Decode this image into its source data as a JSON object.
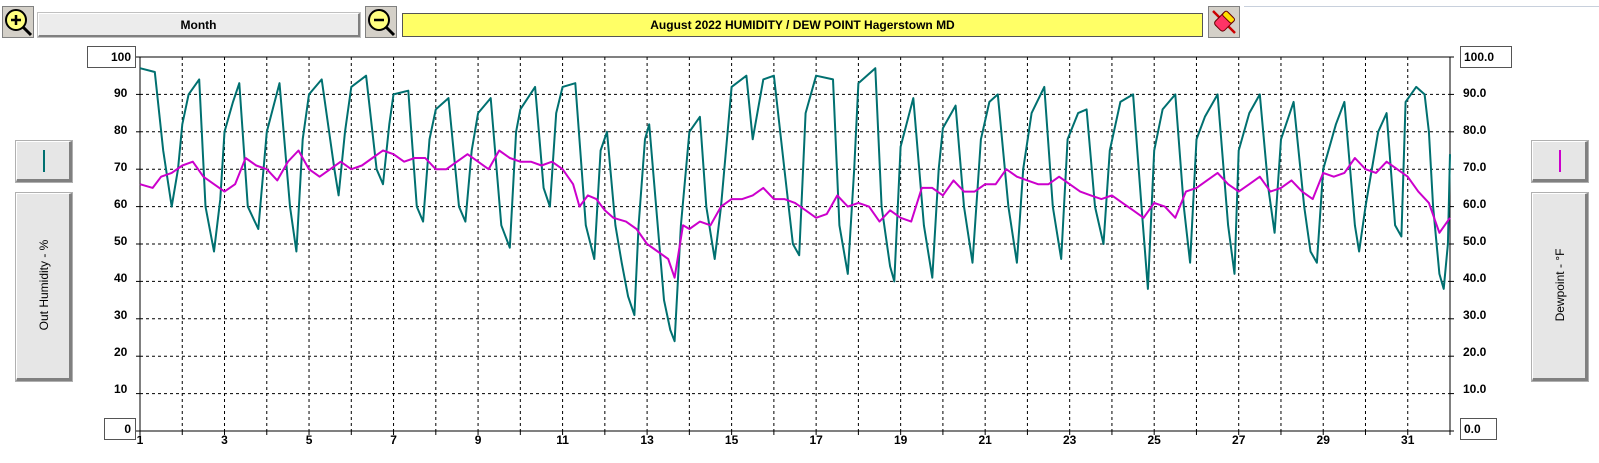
{
  "toolbar": {
    "zoom_in_icon": "magnifier-plus-icon",
    "zoom_out_icon": "magnifier-minus-icon",
    "clear_icon": "eraser-icon",
    "period_label": "Month",
    "title": "August 2022   HUMIDITY / DEW POINT  Hagerstown MD"
  },
  "left_axis": {
    "label": "Out Humidity - %",
    "max_box": "100",
    "min_box": "0",
    "ticks": [
      "90",
      "80",
      "70",
      "60",
      "50",
      "40",
      "30",
      "20",
      "10"
    ],
    "color": "#007070"
  },
  "right_axis": {
    "label": "Dewpoint - °F",
    "max_box": "100.0",
    "min_box": "0.0",
    "ticks": [
      "90.0",
      "80.0",
      "70.0",
      "60.0",
      "50.0",
      "40.0",
      "30.0",
      "20.0",
      "10.0"
    ],
    "color": "#cc00cc"
  },
  "chart_data": {
    "type": "line",
    "title": "August 2022   HUMIDITY / DEW POINT  Hagerstown MD",
    "xlabel": "",
    "x_ticks": [
      "1",
      "3",
      "5",
      "7",
      "9",
      "11",
      "13",
      "15",
      "17",
      "19",
      "21",
      "23",
      "25",
      "27",
      "29",
      "31"
    ],
    "xlim": [
      1,
      32
    ],
    "ylim": [
      0,
      100
    ],
    "grid": true,
    "series": [
      {
        "name": "Out Humidity - %",
        "color": "#007070",
        "y_axis": "left",
        "points": [
          [
            1.0,
            97
          ],
          [
            1.35,
            96
          ],
          [
            1.55,
            75
          ],
          [
            1.75,
            60
          ],
          [
            1.9,
            70
          ],
          [
            2.0,
            82
          ],
          [
            2.15,
            90
          ],
          [
            2.4,
            94
          ],
          [
            2.55,
            60
          ],
          [
            2.75,
            48
          ],
          [
            2.9,
            62
          ],
          [
            3.0,
            80
          ],
          [
            3.2,
            88
          ],
          [
            3.35,
            93
          ],
          [
            3.55,
            60
          ],
          [
            3.8,
            54
          ],
          [
            4.0,
            80
          ],
          [
            4.3,
            93
          ],
          [
            4.55,
            60
          ],
          [
            4.7,
            48
          ],
          [
            4.85,
            78
          ],
          [
            5.0,
            90
          ],
          [
            5.3,
            94
          ],
          [
            5.6,
            70
          ],
          [
            5.7,
            63
          ],
          [
            5.85,
            80
          ],
          [
            6.0,
            92
          ],
          [
            6.35,
            95
          ],
          [
            6.6,
            70
          ],
          [
            6.75,
            66
          ],
          [
            6.9,
            82
          ],
          [
            7.0,
            90
          ],
          [
            7.35,
            91
          ],
          [
            7.55,
            60
          ],
          [
            7.7,
            56
          ],
          [
            7.85,
            78
          ],
          [
            8.0,
            86
          ],
          [
            8.3,
            89
          ],
          [
            8.55,
            60
          ],
          [
            8.7,
            56
          ],
          [
            8.85,
            75
          ],
          [
            9.0,
            85
          ],
          [
            9.3,
            89
          ],
          [
            9.55,
            55
          ],
          [
            9.75,
            49
          ],
          [
            9.9,
            80
          ],
          [
            10.0,
            86
          ],
          [
            10.35,
            92
          ],
          [
            10.55,
            65
          ],
          [
            10.7,
            60
          ],
          [
            10.85,
            85
          ],
          [
            11.0,
            92
          ],
          [
            11.3,
            93
          ],
          [
            11.55,
            55
          ],
          [
            11.75,
            46
          ],
          [
            11.9,
            75
          ],
          [
            12.05,
            80
          ],
          [
            12.25,
            55
          ],
          [
            12.4,
            45
          ],
          [
            12.55,
            36
          ],
          [
            12.7,
            31
          ],
          [
            12.8,
            55
          ],
          [
            12.95,
            78
          ],
          [
            13.05,
            82
          ],
          [
            13.25,
            55
          ],
          [
            13.4,
            35
          ],
          [
            13.55,
            27
          ],
          [
            13.65,
            24
          ],
          [
            13.8,
            55
          ],
          [
            14.0,
            80
          ],
          [
            14.25,
            84
          ],
          [
            14.4,
            60
          ],
          [
            14.6,
            46
          ],
          [
            14.75,
            60
          ],
          [
            15.0,
            92
          ],
          [
            15.35,
            95
          ],
          [
            15.5,
            78
          ],
          [
            15.75,
            94
          ],
          [
            16.0,
            95
          ],
          [
            16.25,
            70
          ],
          [
            16.45,
            50
          ],
          [
            16.6,
            47
          ],
          [
            16.75,
            85
          ],
          [
            17.0,
            95
          ],
          [
            17.4,
            94
          ],
          [
            17.55,
            55
          ],
          [
            17.75,
            42
          ],
          [
            17.9,
            70
          ],
          [
            18.0,
            93
          ],
          [
            18.4,
            97
          ],
          [
            18.55,
            60
          ],
          [
            18.75,
            44
          ],
          [
            18.85,
            40
          ],
          [
            19.0,
            76
          ],
          [
            19.3,
            89
          ],
          [
            19.55,
            55
          ],
          [
            19.75,
            41
          ],
          [
            19.9,
            70
          ],
          [
            20.0,
            81
          ],
          [
            20.3,
            87
          ],
          [
            20.5,
            60
          ],
          [
            20.7,
            45
          ],
          [
            20.9,
            78
          ],
          [
            21.1,
            88
          ],
          [
            21.3,
            90
          ],
          [
            21.55,
            60
          ],
          [
            21.75,
            45
          ],
          [
            21.9,
            70
          ],
          [
            22.1,
            85
          ],
          [
            22.4,
            92
          ],
          [
            22.6,
            60
          ],
          [
            22.8,
            46
          ],
          [
            22.95,
            78
          ],
          [
            23.2,
            85
          ],
          [
            23.4,
            86
          ],
          [
            23.6,
            60
          ],
          [
            23.8,
            50
          ],
          [
            23.95,
            75
          ],
          [
            24.2,
            88
          ],
          [
            24.5,
            90
          ],
          [
            24.7,
            60
          ],
          [
            24.85,
            38
          ],
          [
            25.0,
            75
          ],
          [
            25.2,
            86
          ],
          [
            25.5,
            90
          ],
          [
            25.7,
            60
          ],
          [
            25.85,
            45
          ],
          [
            26.0,
            78
          ],
          [
            26.2,
            84
          ],
          [
            26.5,
            90
          ],
          [
            26.75,
            55
          ],
          [
            26.9,
            42
          ],
          [
            27.0,
            75
          ],
          [
            27.25,
            85
          ],
          [
            27.5,
            90
          ],
          [
            27.7,
            65
          ],
          [
            27.85,
            53
          ],
          [
            28.0,
            78
          ],
          [
            28.3,
            88
          ],
          [
            28.55,
            60
          ],
          [
            28.7,
            48
          ],
          [
            28.85,
            45
          ],
          [
            29.0,
            70
          ],
          [
            29.3,
            82
          ],
          [
            29.5,
            88
          ],
          [
            29.75,
            55
          ],
          [
            29.85,
            48
          ],
          [
            30.0,
            60
          ],
          [
            30.3,
            80
          ],
          [
            30.5,
            85
          ],
          [
            30.7,
            55
          ],
          [
            30.85,
            52
          ],
          [
            30.95,
            88
          ],
          [
            31.2,
            92
          ],
          [
            31.4,
            90
          ],
          [
            31.5,
            80
          ],
          [
            31.6,
            60
          ],
          [
            31.75,
            42
          ],
          [
            31.85,
            38
          ],
          [
            31.95,
            50
          ],
          [
            32.0,
            74
          ]
        ]
      },
      {
        "name": "Dewpoint - °F",
        "color": "#cc00cc",
        "y_axis": "right",
        "points": [
          [
            1.0,
            66
          ],
          [
            1.3,
            65
          ],
          [
            1.5,
            68
          ],
          [
            1.75,
            69
          ],
          [
            2.0,
            71
          ],
          [
            2.25,
            72
          ],
          [
            2.5,
            68
          ],
          [
            2.75,
            66
          ],
          [
            3.0,
            64
          ],
          [
            3.25,
            66
          ],
          [
            3.5,
            73
          ],
          [
            3.75,
            71
          ],
          [
            4.0,
            70
          ],
          [
            4.25,
            67
          ],
          [
            4.5,
            72
          ],
          [
            4.75,
            75
          ],
          [
            5.0,
            70
          ],
          [
            5.25,
            68
          ],
          [
            5.5,
            70
          ],
          [
            5.75,
            72
          ],
          [
            6.0,
            70
          ],
          [
            6.25,
            71
          ],
          [
            6.5,
            73
          ],
          [
            6.75,
            75
          ],
          [
            7.0,
            74
          ],
          [
            7.25,
            72
          ],
          [
            7.5,
            73
          ],
          [
            7.75,
            73
          ],
          [
            8.0,
            70
          ],
          [
            8.25,
            70
          ],
          [
            8.5,
            72
          ],
          [
            8.75,
            74
          ],
          [
            9.0,
            72
          ],
          [
            9.25,
            70
          ],
          [
            9.5,
            75
          ],
          [
            9.75,
            73
          ],
          [
            10.0,
            72
          ],
          [
            10.25,
            72
          ],
          [
            10.5,
            71
          ],
          [
            10.75,
            72
          ],
          [
            11.0,
            70
          ],
          [
            11.25,
            66
          ],
          [
            11.4,
            60
          ],
          [
            11.6,
            63
          ],
          [
            11.8,
            62
          ],
          [
            12.0,
            59
          ],
          [
            12.2,
            57
          ],
          [
            12.5,
            56
          ],
          [
            12.75,
            54
          ],
          [
            13.0,
            50
          ],
          [
            13.25,
            48
          ],
          [
            13.5,
            46
          ],
          [
            13.65,
            41
          ],
          [
            13.85,
            55
          ],
          [
            14.0,
            54
          ],
          [
            14.25,
            56
          ],
          [
            14.5,
            55
          ],
          [
            14.75,
            60
          ],
          [
            15.0,
            62
          ],
          [
            15.25,
            62
          ],
          [
            15.5,
            63
          ],
          [
            15.75,
            65
          ],
          [
            16.0,
            62
          ],
          [
            16.25,
            62
          ],
          [
            16.5,
            61
          ],
          [
            16.75,
            59
          ],
          [
            17.0,
            57
          ],
          [
            17.25,
            58
          ],
          [
            17.5,
            63
          ],
          [
            17.75,
            60
          ],
          [
            18.0,
            61
          ],
          [
            18.25,
            60
          ],
          [
            18.5,
            56
          ],
          [
            18.75,
            59
          ],
          [
            19.0,
            57
          ],
          [
            19.25,
            56
          ],
          [
            19.5,
            65
          ],
          [
            19.75,
            65
          ],
          [
            20.0,
            63
          ],
          [
            20.25,
            67
          ],
          [
            20.5,
            64
          ],
          [
            20.75,
            64
          ],
          [
            21.0,
            66
          ],
          [
            21.25,
            66
          ],
          [
            21.5,
            70
          ],
          [
            21.75,
            68
          ],
          [
            22.0,
            67
          ],
          [
            22.25,
            66
          ],
          [
            22.5,
            66
          ],
          [
            22.75,
            68
          ],
          [
            23.0,
            66
          ],
          [
            23.25,
            64
          ],
          [
            23.5,
            63
          ],
          [
            23.75,
            62
          ],
          [
            24.0,
            63
          ],
          [
            24.25,
            61
          ],
          [
            24.5,
            59
          ],
          [
            24.75,
            57
          ],
          [
            25.0,
            61
          ],
          [
            25.25,
            60
          ],
          [
            25.5,
            57
          ],
          [
            25.75,
            64
          ],
          [
            26.0,
            65
          ],
          [
            26.25,
            67
          ],
          [
            26.5,
            69
          ],
          [
            26.75,
            66
          ],
          [
            27.0,
            64
          ],
          [
            27.25,
            66
          ],
          [
            27.5,
            68
          ],
          [
            27.75,
            64
          ],
          [
            28.0,
            65
          ],
          [
            28.25,
            67
          ],
          [
            28.5,
            64
          ],
          [
            28.75,
            62
          ],
          [
            29.0,
            69
          ],
          [
            29.25,
            68
          ],
          [
            29.5,
            69
          ],
          [
            29.75,
            73
          ],
          [
            30.0,
            70
          ],
          [
            30.25,
            69
          ],
          [
            30.5,
            72
          ],
          [
            30.75,
            70
          ],
          [
            31.0,
            68
          ],
          [
            31.25,
            64
          ],
          [
            31.5,
            61
          ],
          [
            31.75,
            53
          ],
          [
            32.0,
            57
          ]
        ]
      }
    ]
  }
}
